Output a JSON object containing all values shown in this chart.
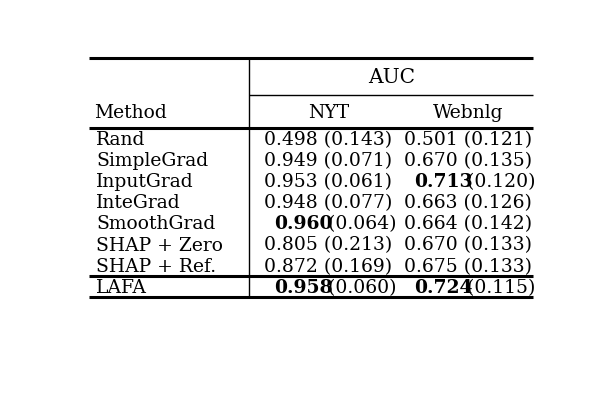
{
  "title": "AUC",
  "col_headers": [
    "Method",
    "NYT",
    "Webnlg"
  ],
  "rows": [
    {
      "method": "Rand",
      "nyt": "0.498 (0.143)",
      "webnlg": "0.501 (0.121)",
      "nyt_bold": "",
      "webnlg_bold": ""
    },
    {
      "method": "SimpleGrad",
      "nyt": "0.949 (0.071)",
      "webnlg": "0.670 (0.135)",
      "nyt_bold": "",
      "webnlg_bold": ""
    },
    {
      "method": "InputGrad",
      "nyt": "0.953 (0.061)",
      "webnlg": "0.713 (0.120)",
      "nyt_bold": "",
      "webnlg_bold": "0.713"
    },
    {
      "method": "InteGrad",
      "nyt": "0.948 (0.077)",
      "webnlg": "0.663 (0.126)",
      "nyt_bold": "",
      "webnlg_bold": ""
    },
    {
      "method": "SmoothGrad",
      "nyt": "0.960 (0.064)",
      "webnlg": "0.664 (0.142)",
      "nyt_bold": "0.960",
      "webnlg_bold": ""
    },
    {
      "method": "SHAP + Zero",
      "nyt": "0.805 (0.213)",
      "webnlg": "0.670 (0.133)",
      "nyt_bold": "",
      "webnlg_bold": ""
    },
    {
      "method": "SHAP + Ref.",
      "nyt": "0.872 (0.169)",
      "webnlg": "0.675 (0.133)",
      "nyt_bold": "",
      "webnlg_bold": ""
    },
    {
      "method": "LAFA",
      "nyt": "0.958 (0.060)",
      "webnlg": "0.724 (0.115)",
      "nyt_bold": "0.958",
      "webnlg_bold": "0.724"
    }
  ],
  "background_color": "#ffffff",
  "font_size": 13.5,
  "header_font_size": 13.5,
  "fig_width": 6.0,
  "fig_height": 4.14,
  "dpi": 100
}
